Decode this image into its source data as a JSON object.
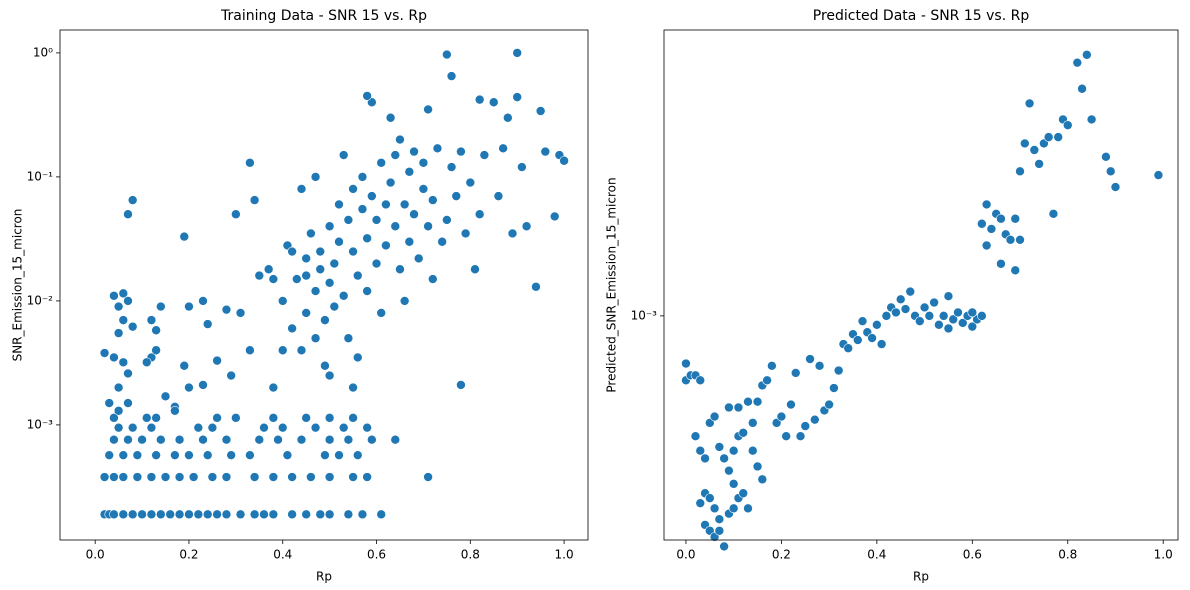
{
  "chart_data": [
    {
      "type": "scatter",
      "title": "Training Data - SNR 15 vs. Rp",
      "xlabel": "Rp",
      "ylabel": "SNR_Emission_15_micron",
      "color": "#1f77b4",
      "log_y": true,
      "xlim": [
        -0.075,
        1.051
      ],
      "ylim": [
        0.000118,
        1.53
      ],
      "xticks": [
        {
          "value": 0,
          "label": "0.0"
        },
        0.2,
        0.4,
        0.6,
        0.8,
        {
          "value": 1,
          "label": "1.0"
        }
      ],
      "yticks": [
        {
          "value": 0.001,
          "label": "10⁻³"
        },
        {
          "value": 0.01,
          "label": "10⁻²"
        },
        {
          "value": 0.1,
          "label": "10⁻¹"
        },
        {
          "value": 1,
          "label": "10⁰"
        }
      ],
      "x": [
        0.02,
        0.03,
        0.04,
        0.06,
        0.08,
        0.1,
        0.12,
        0.14,
        0.16,
        0.18,
        0.2,
        0.22,
        0.24,
        0.26,
        0.28,
        0.31,
        0.34,
        0.36,
        0.38,
        0.42,
        0.45,
        0.48,
        0.5,
        0.54,
        0.57,
        0.61,
        0.02,
        0.04,
        0.06,
        0.09,
        0.12,
        0.15,
        0.18,
        0.21,
        0.25,
        0.28,
        0.34,
        0.38,
        0.42,
        0.46,
        0.5,
        0.55,
        0.58,
        0.71,
        0.03,
        0.06,
        0.09,
        0.13,
        0.17,
        0.2,
        0.24,
        0.29,
        0.33,
        0.41,
        0.49,
        0.52,
        0.56,
        0.04,
        0.07,
        0.1,
        0.14,
        0.18,
        0.23,
        0.28,
        0.35,
        0.39,
        0.44,
        0.5,
        0.54,
        0.59,
        0.64,
        0.05,
        0.08,
        0.12,
        0.22,
        0.25,
        0.36,
        0.4,
        0.47,
        0.53,
        0.58,
        0.04,
        0.11,
        0.13,
        0.26,
        0.3,
        0.38,
        0.45,
        0.5,
        0.55,
        0.05,
        0.07,
        0.03,
        0.05,
        0.07,
        0.06,
        0.04,
        0.02,
        0.05,
        0.06,
        0.05,
        0.04,
        0.06,
        0.07,
        0.08,
        0.12,
        0.11,
        0.13,
        0.12,
        0.13,
        0.14,
        0.15,
        0.17,
        0.19,
        0.2,
        0.23,
        0.24,
        0.23,
        0.26,
        0.28,
        0.29,
        0.31,
        0.33,
        0.33,
        0.3,
        0.34,
        0.35,
        0.37,
        0.38,
        0.07,
        0.08,
        0.19,
        0.2,
        0.17,
        0.4,
        0.41,
        0.42,
        0.43,
        0.44,
        0.45,
        0.45,
        0.46,
        0.47,
        0.47,
        0.48,
        0.48,
        0.49,
        0.49,
        0.5,
        0.5,
        0.51,
        0.51,
        0.52,
        0.52,
        0.53,
        0.53,
        0.54,
        0.54,
        0.55,
        0.55,
        0.56,
        0.56,
        0.57,
        0.57,
        0.58,
        0.58,
        0.59,
        0.59,
        0.6,
        0.6,
        0.61,
        0.61,
        0.62,
        0.62,
        0.63,
        0.63,
        0.64,
        0.64,
        0.65,
        0.65,
        0.66,
        0.66,
        0.67,
        0.67,
        0.68,
        0.68,
        0.69,
        0.7,
        0.7,
        0.71,
        0.71,
        0.72,
        0.72,
        0.73,
        0.74,
        0.75,
        0.75,
        0.76,
        0.76,
        0.77,
        0.78,
        0.78,
        0.79,
        0.8,
        0.81,
        0.82,
        0.82,
        0.83,
        0.85,
        0.86,
        0.87,
        0.88,
        0.89,
        0.9,
        0.9,
        0.91,
        0.92,
        0.94,
        0.95,
        0.96,
        0.98,
        0.99,
        1.0,
        0.58,
        0.55,
        0.5,
        0.45,
        0.42,
        0.4,
        0.38,
        0.44,
        0.47
      ],
      "values": [
        0.00019,
        0.00019,
        0.00019,
        0.00019,
        0.00019,
        0.00019,
        0.00019,
        0.00019,
        0.00019,
        0.00019,
        0.00019,
        0.00019,
        0.00019,
        0.00019,
        0.00019,
        0.00019,
        0.00019,
        0.00019,
        0.00019,
        0.00019,
        0.00019,
        0.00019,
        0.00019,
        0.00019,
        0.00019,
        0.00019,
        0.00038,
        0.00038,
        0.00038,
        0.00038,
        0.00038,
        0.00038,
        0.00038,
        0.00038,
        0.00038,
        0.00038,
        0.00038,
        0.00038,
        0.00038,
        0.00038,
        0.00038,
        0.00038,
        0.00038,
        0.00038,
        0.00057,
        0.00057,
        0.00057,
        0.00057,
        0.00057,
        0.00057,
        0.00057,
        0.00057,
        0.00057,
        0.00057,
        0.00057,
        0.00057,
        0.00057,
        0.00076,
        0.00076,
        0.00076,
        0.00076,
        0.00076,
        0.00076,
        0.00076,
        0.00076,
        0.00076,
        0.00076,
        0.00076,
        0.00076,
        0.00076,
        0.00076,
        0.00095,
        0.00095,
        0.00095,
        0.00095,
        0.00095,
        0.00095,
        0.00095,
        0.00095,
        0.00095,
        0.00095,
        0.00114,
        0.00114,
        0.00114,
        0.00114,
        0.00114,
        0.00114,
        0.00114,
        0.00114,
        0.00114,
        0.0013,
        0.0015,
        0.0015,
        0.002,
        0.0026,
        0.0032,
        0.0035,
        0.0038,
        0.0055,
        0.007,
        0.009,
        0.011,
        0.0115,
        0.01,
        0.0062,
        0.0035,
        0.0032,
        0.004,
        0.007,
        0.0058,
        0.009,
        0.0017,
        0.0014,
        0.003,
        0.002,
        0.0021,
        0.0065,
        0.01,
        0.0033,
        0.0085,
        0.0025,
        0.008,
        0.004,
        0.13,
        0.05,
        0.065,
        0.016,
        0.018,
        0.002,
        0.05,
        0.065,
        0.033,
        0.009,
        0.0013,
        0.01,
        0.028,
        0.006,
        0.015,
        0.004,
        0.022,
        0.008,
        0.035,
        0.012,
        0.005,
        0.025,
        0.018,
        0.007,
        0.003,
        0.014,
        0.04,
        0.02,
        0.009,
        0.06,
        0.03,
        0.15,
        0.011,
        0.005,
        0.045,
        0.025,
        0.08,
        0.016,
        0.0035,
        0.055,
        0.1,
        0.032,
        0.012,
        0.4,
        0.07,
        0.02,
        0.045,
        0.13,
        0.008,
        0.06,
        0.028,
        0.3,
        0.09,
        0.15,
        0.04,
        0.018,
        0.2,
        0.06,
        0.01,
        0.11,
        0.03,
        0.05,
        0.16,
        0.022,
        0.08,
        0.13,
        0.04,
        0.35,
        0.065,
        0.015,
        0.17,
        0.03,
        0.97,
        0.045,
        0.65,
        0.12,
        0.07,
        0.0021,
        0.16,
        0.035,
        0.09,
        0.018,
        0.42,
        0.05,
        0.15,
        0.4,
        0.07,
        0.17,
        0.3,
        0.035,
        0.44,
        1.0,
        0.12,
        0.04,
        0.013,
        0.34,
        0.16,
        0.048,
        0.15,
        0.135,
        0.45,
        0.002,
        0.0025,
        0.016,
        0.025,
        0.004,
        0.015,
        0.08,
        0.1
      ]
    },
    {
      "type": "scatter",
      "title": "Predicted Data - SNR 15 vs. Rp",
      "xlabel": "Rp",
      "ylabel": "Predicted_SNR_Emission_15_micron",
      "color": "#1f77b4",
      "log_y": true,
      "xlim": [
        -0.046,
        1.031
      ],
      "ylim": [
        0.000275,
        0.00519
      ],
      "xticks": [
        {
          "value": 0,
          "label": "0.0"
        },
        0.2,
        0.4,
        0.6,
        0.8,
        {
          "value": 1,
          "label": "1.0"
        }
      ],
      "yticks": [
        {
          "value": 0.001,
          "label": "10⁻³"
        }
      ],
      "x": [
        0.0,
        0.0,
        0.01,
        0.02,
        0.03,
        0.02,
        0.03,
        0.04,
        0.05,
        0.06,
        0.07,
        0.04,
        0.03,
        0.05,
        0.06,
        0.04,
        0.05,
        0.06,
        0.07,
        0.08,
        0.07,
        0.09,
        0.1,
        0.11,
        0.12,
        0.13,
        0.1,
        0.09,
        0.08,
        0.1,
        0.11,
        0.12,
        0.09,
        0.11,
        0.13,
        0.14,
        0.15,
        0.16,
        0.14,
        0.15,
        0.16,
        0.17,
        0.18,
        0.19,
        0.2,
        0.21,
        0.22,
        0.23,
        0.24,
        0.25,
        0.26,
        0.27,
        0.28,
        0.29,
        0.3,
        0.31,
        0.32,
        0.33,
        0.34,
        0.35,
        0.36,
        0.37,
        0.38,
        0.39,
        0.4,
        0.41,
        0.42,
        0.43,
        0.44,
        0.45,
        0.46,
        0.47,
        0.48,
        0.49,
        0.5,
        0.51,
        0.52,
        0.53,
        0.54,
        0.55,
        0.56,
        0.57,
        0.58,
        0.59,
        0.6,
        0.61,
        0.62,
        0.62,
        0.63,
        0.64,
        0.65,
        0.66,
        0.67,
        0.68,
        0.69,
        0.7,
        0.71,
        0.72,
        0.73,
        0.74,
        0.75,
        0.76,
        0.77,
        0.78,
        0.79,
        0.8,
        0.82,
        0.83,
        0.84,
        0.85,
        0.88,
        0.89,
        0.9,
        0.99,
        0.63,
        0.66,
        0.69,
        0.7,
        0.6,
        0.55
      ],
      "values": [
        0.00076,
        0.00069,
        0.00071,
        0.00071,
        0.00069,
        0.0005,
        0.00046,
        0.00044,
        0.00054,
        0.00056,
        0.00047,
        0.00036,
        0.00034,
        0.00035,
        0.00033,
        0.0003,
        0.00029,
        0.00028,
        0.00029,
        0.000265,
        0.00031,
        0.00032,
        0.00033,
        0.00035,
        0.00036,
        0.00033,
        0.00038,
        0.00041,
        0.00044,
        0.00046,
        0.0005,
        0.00051,
        0.00059,
        0.00059,
        0.00061,
        0.00046,
        0.00042,
        0.00039,
        0.00054,
        0.00061,
        0.00067,
        0.00069,
        0.00075,
        0.00054,
        0.00056,
        0.0005,
        0.0006,
        0.00072,
        0.0005,
        0.00053,
        0.00078,
        0.00055,
        0.00075,
        0.00058,
        0.0006,
        0.00066,
        0.00073,
        0.00085,
        0.00083,
        0.0009,
        0.00087,
        0.00097,
        0.00091,
        0.00088,
        0.00095,
        0.00085,
        0.001,
        0.00105,
        0.00102,
        0.0011,
        0.00104,
        0.00115,
        0.001,
        0.00097,
        0.00105,
        0.001,
        0.00108,
        0.00095,
        0.001,
        0.00112,
        0.00098,
        0.00102,
        0.00096,
        0.001,
        0.00094,
        0.00098,
        0.001,
        0.0017,
        0.0019,
        0.00165,
        0.0018,
        0.00175,
        0.0016,
        0.00155,
        0.00175,
        0.0023,
        0.0027,
        0.0034,
        0.0026,
        0.0024,
        0.0027,
        0.0028,
        0.0018,
        0.0028,
        0.0031,
        0.003,
        0.0043,
        0.0037,
        0.0045,
        0.0031,
        0.0025,
        0.0023,
        0.0021,
        0.00225,
        0.0015,
        0.00135,
        0.0013,
        0.00155,
        0.00102,
        0.00093
      ]
    }
  ]
}
